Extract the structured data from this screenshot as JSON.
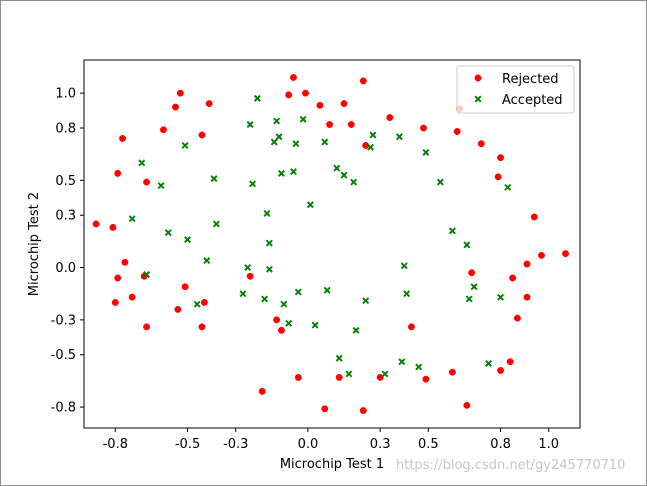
{
  "chart_data": {
    "type": "scatter",
    "title": "",
    "xlabel": "Microchip Test 1",
    "ylabel": "Microchip Test 2",
    "xlim": [
      -0.93,
      1.13
    ],
    "ylim": [
      -0.92,
      1.19
    ],
    "x_ticks": [
      -0.8,
      -0.5,
      -0.3,
      0.0,
      0.3,
      0.5,
      0.8,
      1.0
    ],
    "x_tick_labels": [
      "-0.8",
      "-0.5",
      "-0.3",
      "0.0",
      "0.3",
      "0.5",
      "0.8",
      "1.0"
    ],
    "y_ticks": [
      -0.8,
      -0.5,
      -0.3,
      0.0,
      0.3,
      0.5,
      0.8,
      1.0
    ],
    "y_tick_labels": [
      "-0.8",
      "-0.5",
      "-0.3",
      "0.0",
      "0.3",
      "0.5",
      "0.8",
      "1.0"
    ],
    "grid": false,
    "legend_position": "top-right",
    "series": [
      {
        "name": "Rejected",
        "marker": "circle",
        "color": "#ff0000",
        "points": [
          [
            -0.88,
            0.25
          ],
          [
            -0.81,
            0.23
          ],
          [
            -0.8,
            -0.2
          ],
          [
            -0.79,
            0.54
          ],
          [
            -0.79,
            -0.06
          ],
          [
            -0.77,
            0.74
          ],
          [
            -0.76,
            0.03
          ],
          [
            -0.73,
            -0.17
          ],
          [
            -0.68,
            -0.05
          ],
          [
            -0.67,
            -0.34
          ],
          [
            -0.67,
            0.49
          ],
          [
            -0.6,
            0.79
          ],
          [
            -0.55,
            0.92
          ],
          [
            -0.53,
            1.0
          ],
          [
            -0.54,
            -0.24
          ],
          [
            -0.51,
            -0.11
          ],
          [
            -0.43,
            -0.2
          ],
          [
            -0.44,
            -0.34
          ],
          [
            -0.44,
            0.76
          ],
          [
            -0.41,
            0.94
          ],
          [
            -0.24,
            -0.05
          ],
          [
            -0.19,
            -0.71
          ],
          [
            -0.13,
            -0.3
          ],
          [
            -0.11,
            -0.36
          ],
          [
            -0.08,
            0.99
          ],
          [
            -0.06,
            1.09
          ],
          [
            -0.04,
            -0.63
          ],
          [
            -0.01,
            1.0
          ],
          [
            0.05,
            0.93
          ],
          [
            0.07,
            -0.81
          ],
          [
            0.09,
            0.82
          ],
          [
            0.13,
            -0.63
          ],
          [
            0.15,
            0.94
          ],
          [
            0.18,
            0.82
          ],
          [
            0.23,
            -0.82
          ],
          [
            0.23,
            1.07
          ],
          [
            0.24,
            0.7
          ],
          [
            0.3,
            -0.63
          ],
          [
            0.34,
            0.86
          ],
          [
            0.43,
            -0.34
          ],
          [
            0.48,
            0.8
          ],
          [
            0.49,
            -0.64
          ],
          [
            0.6,
            -0.6
          ],
          [
            0.62,
            0.78
          ],
          [
            0.63,
            0.91
          ],
          [
            0.66,
            -0.79
          ],
          [
            0.68,
            -0.03
          ],
          [
            0.72,
            0.71
          ],
          [
            0.79,
            0.52
          ],
          [
            0.8,
            0.63
          ],
          [
            0.8,
            -0.59
          ],
          [
            0.84,
            -0.54
          ],
          [
            0.85,
            -0.06
          ],
          [
            0.87,
            -0.29
          ],
          [
            0.91,
            0.02
          ],
          [
            0.91,
            -0.17
          ],
          [
            0.94,
            0.29
          ],
          [
            0.97,
            0.07
          ],
          [
            1.07,
            0.08
          ]
        ]
      },
      {
        "name": "Accepted",
        "marker": "x",
        "color": "#008000",
        "points": [
          [
            -0.73,
            0.28
          ],
          [
            -0.69,
            0.6
          ],
          [
            -0.67,
            -0.04
          ],
          [
            -0.61,
            0.47
          ],
          [
            -0.58,
            0.2
          ],
          [
            -0.51,
            0.7
          ],
          [
            -0.5,
            0.16
          ],
          [
            -0.46,
            -0.21
          ],
          [
            -0.42,
            0.04
          ],
          [
            -0.39,
            0.51
          ],
          [
            -0.38,
            0.25
          ],
          [
            -0.27,
            -0.15
          ],
          [
            -0.25,
            0.0
          ],
          [
            -0.24,
            0.82
          ],
          [
            -0.23,
            0.48
          ],
          [
            -0.21,
            0.97
          ],
          [
            -0.18,
            -0.18
          ],
          [
            -0.17,
            0.31
          ],
          [
            -0.16,
            0.14
          ],
          [
            -0.16,
            -0.01
          ],
          [
            -0.14,
            0.72
          ],
          [
            -0.13,
            0.84
          ],
          [
            -0.12,
            0.75
          ],
          [
            -0.11,
            0.54
          ],
          [
            -0.1,
            -0.21
          ],
          [
            -0.08,
            -0.32
          ],
          [
            -0.06,
            0.55
          ],
          [
            -0.05,
            0.71
          ],
          [
            -0.04,
            -0.14
          ],
          [
            -0.02,
            0.85
          ],
          [
            0.01,
            0.36
          ],
          [
            0.03,
            -0.33
          ],
          [
            0.07,
            0.72
          ],
          [
            0.08,
            -0.13
          ],
          [
            0.12,
            0.57
          ],
          [
            0.13,
            -0.52
          ],
          [
            0.15,
            0.53
          ],
          [
            0.17,
            -0.61
          ],
          [
            0.19,
            0.49
          ],
          [
            0.2,
            -0.36
          ],
          [
            0.24,
            -0.19
          ],
          [
            0.26,
            0.69
          ],
          [
            0.27,
            0.76
          ],
          [
            0.32,
            -0.61
          ],
          [
            0.38,
            0.75
          ],
          [
            0.39,
            -0.54
          ],
          [
            0.4,
            0.01
          ],
          [
            0.41,
            -0.15
          ],
          [
            0.46,
            -0.57
          ],
          [
            0.49,
            0.66
          ],
          [
            0.55,
            0.49
          ],
          [
            0.6,
            0.21
          ],
          [
            0.66,
            0.13
          ],
          [
            0.67,
            -0.18
          ],
          [
            0.69,
            -0.11
          ],
          [
            0.75,
            -0.55
          ],
          [
            0.8,
            -0.17
          ],
          [
            0.83,
            0.46
          ]
        ]
      }
    ]
  },
  "watermark": "https://blog.csdn.net/gy245770710"
}
